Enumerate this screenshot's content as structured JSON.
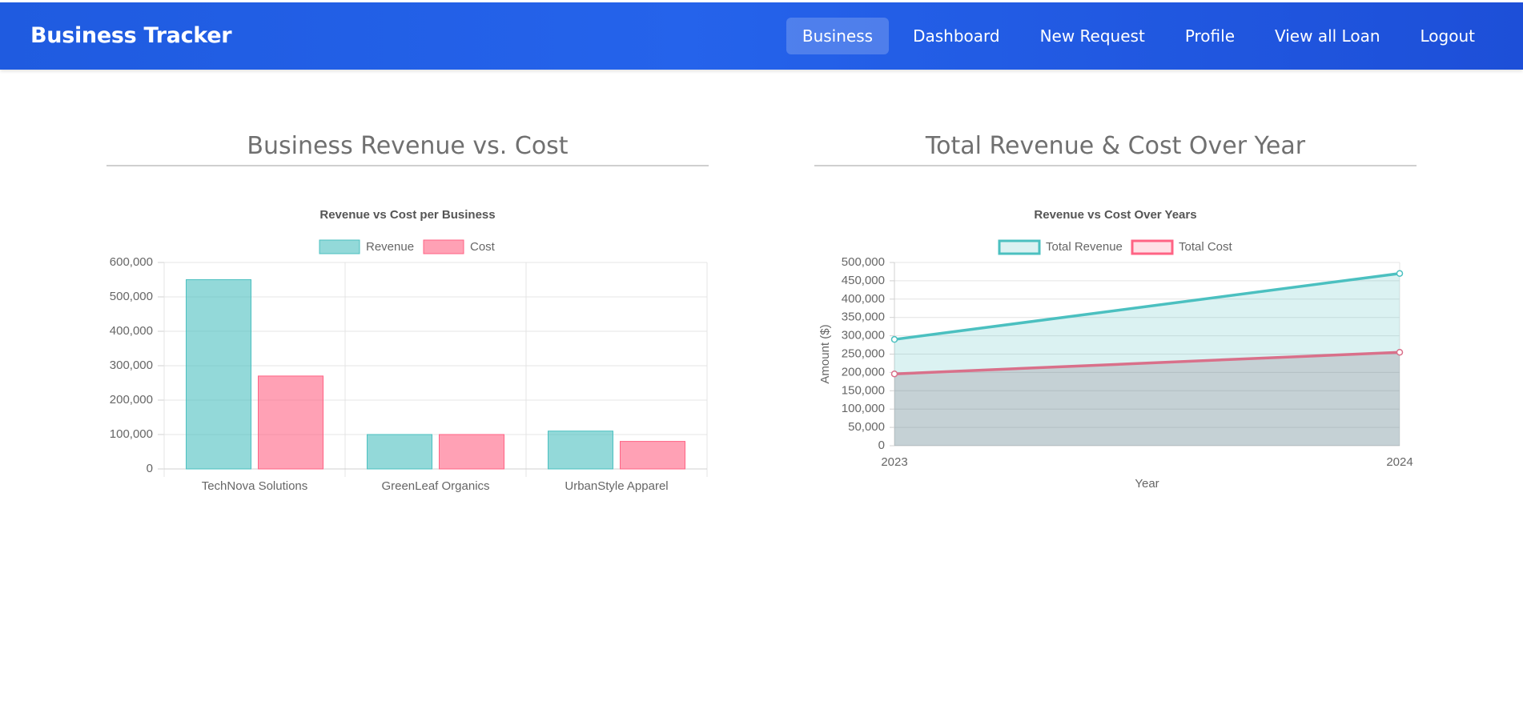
{
  "navbar": {
    "brand": "Business Tracker",
    "links": [
      {
        "label": "Business",
        "active": true
      },
      {
        "label": "Dashboard",
        "active": false
      },
      {
        "label": "New Request",
        "active": false
      },
      {
        "label": "Profile",
        "active": false
      },
      {
        "label": "View all Loan",
        "active": false
      },
      {
        "label": "Logout",
        "active": false
      }
    ]
  },
  "sections": {
    "left_title": "Business Revenue vs. Cost",
    "right_title": "Total Revenue & Cost Over Year"
  },
  "colors": {
    "navbar": "#2563eb",
    "revenue_fill": "rgba(75,192,192,0.6)",
    "revenue_line": "#4bc0c0",
    "cost_fill": "rgba(255,99,132,0.6)",
    "cost_line": "#ff6384"
  },
  "chart_data": [
    {
      "type": "bar",
      "title": "Revenue vs Cost per Business",
      "categories": [
        "TechNova Solutions",
        "GreenLeaf Organics",
        "UrbanStyle Apparel"
      ],
      "series": [
        {
          "name": "Revenue",
          "values": [
            550000,
            100000,
            110000
          ]
        },
        {
          "name": "Cost",
          "values": [
            270000,
            100000,
            80000
          ]
        }
      ],
      "ylim": [
        0,
        600000
      ],
      "yticks": [
        0,
        100000,
        200000,
        300000,
        400000,
        500000,
        600000
      ],
      "ytick_labels": [
        "0",
        "100,000",
        "200,000",
        "300,000",
        "400,000",
        "500,000",
        "600,000"
      ],
      "xlabel": "",
      "ylabel": "",
      "legend": "top",
      "grid": true
    },
    {
      "type": "area",
      "title": "Revenue vs Cost Over Years",
      "x": [
        "2023",
        "2024"
      ],
      "series": [
        {
          "name": "Total Revenue",
          "values": [
            290000,
            470000
          ]
        },
        {
          "name": "Total Cost",
          "values": [
            196000,
            255000
          ]
        }
      ],
      "ylim": [
        0,
        500000
      ],
      "yticks": [
        0,
        50000,
        100000,
        150000,
        200000,
        250000,
        300000,
        350000,
        400000,
        450000,
        500000
      ],
      "ytick_labels": [
        "0",
        "50,000",
        "100,000",
        "150,000",
        "200,000",
        "250,000",
        "300,000",
        "350,000",
        "400,000",
        "450,000",
        "500,000"
      ],
      "xlabel": "Year",
      "ylabel": "Amount ($)",
      "legend": "top",
      "grid": true
    }
  ]
}
